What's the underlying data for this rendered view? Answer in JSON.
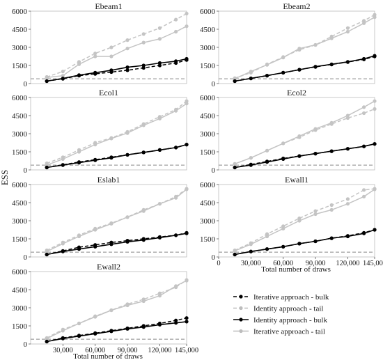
{
  "figure": {
    "ylabel": "ESS",
    "xlabel": "Total number of draws",
    "legend": [
      {
        "label": "Iterative approach - bulk",
        "color": "#000000",
        "dash": true
      },
      {
        "label": "Identity approach - tail",
        "color": "#bdbdbd",
        "dash": true
      },
      {
        "label": "Identity approach - bulk",
        "color": "#000000",
        "dash": false
      },
      {
        "label": "Iterative approach - tail",
        "color": "#bdbdbd",
        "dash": false
      }
    ]
  },
  "chart_data": [
    {
      "type": "line",
      "title": "Ebeam1",
      "x": [
        15000,
        30000,
        45000,
        60000,
        75000,
        90000,
        105000,
        120000,
        135000,
        145000
      ],
      "xlim": [
        0,
        145000
      ],
      "ylim": [
        0,
        6000
      ],
      "yticks": [
        "0",
        "1500",
        "3000",
        "4500",
        "6000"
      ],
      "xticks": [],
      "reference_line": 400,
      "series": [
        {
          "name": "Iterative approach - bulk",
          "values": [
            200,
            400,
            650,
            800,
            950,
            1100,
            1300,
            1500,
            1700,
            1950
          ]
        },
        {
          "name": "Identity approach - tail",
          "values": [
            550,
            1000,
            1800,
            2500,
            3000,
            3600,
            4100,
            4600,
            5300,
            5800
          ]
        },
        {
          "name": "Identity approach - bulk",
          "values": [
            200,
            420,
            700,
            900,
            1100,
            1350,
            1500,
            1700,
            1850,
            2050
          ]
        },
        {
          "name": "Iterative approach - tail",
          "values": [
            500,
            650,
            1600,
            2250,
            2250,
            2900,
            3400,
            3700,
            4300,
            4750
          ]
        }
      ]
    },
    {
      "type": "line",
      "title": "Ebeam2",
      "x": [
        15000,
        30000,
        45000,
        60000,
        75000,
        90000,
        105000,
        120000,
        135000,
        145000
      ],
      "xlim": [
        0,
        145000
      ],
      "ylim": [
        0,
        6000
      ],
      "yticks": [
        "0",
        "1500",
        "3000",
        "4500",
        "6000"
      ],
      "xticks": [],
      "reference_line": 400,
      "series": [
        {
          "name": "Iterative approach - bulk",
          "values": [
            200,
            420,
            650,
            900,
            1150,
            1380,
            1580,
            1780,
            2000,
            2250
          ]
        },
        {
          "name": "Identity approach - tail",
          "values": [
            450,
            900,
            1600,
            2200,
            2800,
            3200,
            3900,
            4600,
            5200,
            5700
          ]
        },
        {
          "name": "Identity approach - bulk",
          "values": [
            200,
            430,
            660,
            900,
            1150,
            1400,
            1600,
            1800,
            2050,
            2300
          ]
        },
        {
          "name": "Iterative approach - tail",
          "values": [
            400,
            1000,
            1550,
            2150,
            2900,
            3200,
            3750,
            4300,
            5000,
            5500
          ]
        }
      ]
    },
    {
      "type": "line",
      "title": "Ecol1",
      "x": [
        15000,
        30000,
        45000,
        60000,
        75000,
        90000,
        105000,
        120000,
        135000,
        145000
      ],
      "xlim": [
        0,
        145000
      ],
      "ylim": [
        0,
        6000
      ],
      "yticks": [
        "0",
        "1500",
        "3000",
        "4500",
        "6000"
      ],
      "xticks": [],
      "reference_line": 400,
      "series": [
        {
          "name": "Iterative approach - bulk",
          "values": [
            200,
            420,
            650,
            850,
            1050,
            1250,
            1450,
            1650,
            1850,
            2100
          ]
        },
        {
          "name": "Identity approach - tail",
          "values": [
            550,
            1050,
            1650,
            2250,
            2650,
            3150,
            3800,
            4400,
            5000,
            5700
          ]
        },
        {
          "name": "Identity approach - bulk",
          "values": [
            200,
            400,
            600,
            800,
            1000,
            1250,
            1450,
            1650,
            1850,
            2100
          ]
        },
        {
          "name": "Iterative approach - tail",
          "values": [
            400,
            900,
            1500,
            2100,
            2600,
            3050,
            3700,
            4250,
            4900,
            5500
          ]
        }
      ]
    },
    {
      "type": "line",
      "title": "Ecol2",
      "x": [
        15000,
        30000,
        45000,
        60000,
        75000,
        90000,
        105000,
        120000,
        135000,
        145000
      ],
      "xlim": [
        0,
        145000
      ],
      "ylim": [
        0,
        6000
      ],
      "yticks": [
        "0",
        "1500",
        "3000",
        "4500",
        "6000"
      ],
      "xticks": [],
      "reference_line": 400,
      "series": [
        {
          "name": "Iterative approach - bulk",
          "values": [
            200,
            450,
            700,
            950,
            1150,
            1350,
            1550,
            1750,
            1950,
            2150
          ]
        },
        {
          "name": "Identity approach - tail",
          "values": [
            500,
            1000,
            1600,
            2200,
            2700,
            3300,
            3800,
            4300,
            4700,
            5050
          ]
        },
        {
          "name": "Identity approach - bulk",
          "values": [
            200,
            400,
            650,
            900,
            1150,
            1350,
            1550,
            1750,
            1950,
            2150
          ]
        },
        {
          "name": "Iterative approach - tail",
          "values": [
            500,
            1000,
            1600,
            2200,
            2800,
            3400,
            3900,
            4500,
            5200,
            5700
          ]
        }
      ]
    },
    {
      "type": "line",
      "title": "Eslab1",
      "x": [
        15000,
        30000,
        45000,
        60000,
        75000,
        90000,
        105000,
        120000,
        135000,
        145000
      ],
      "xlim": [
        0,
        145000
      ],
      "ylim": [
        0,
        6000
      ],
      "yticks": [
        "0",
        "1500",
        "3000",
        "4500",
        "6000"
      ],
      "xticks": [],
      "reference_line": 400,
      "series": [
        {
          "name": "Iterative approach - bulk",
          "values": [
            200,
            500,
            800,
            1000,
            1200,
            1350,
            1500,
            1650,
            1800,
            2000
          ]
        },
        {
          "name": "Identity approach - tail",
          "values": [
            550,
            1200,
            1800,
            2350,
            2800,
            3300,
            3900,
            4400,
            5000,
            5650
          ]
        },
        {
          "name": "Identity approach - bulk",
          "values": [
            200,
            450,
            650,
            850,
            1050,
            1250,
            1400,
            1600,
            1800,
            1950
          ]
        },
        {
          "name": "Iterative approach - tail",
          "values": [
            450,
            1100,
            1700,
            2250,
            2750,
            3300,
            3800,
            4400,
            4900,
            5600
          ]
        }
      ]
    },
    {
      "type": "line",
      "title": "Ewall1",
      "x": [
        15000,
        30000,
        45000,
        60000,
        75000,
        90000,
        105000,
        120000,
        135000,
        145000
      ],
      "xlim": [
        0,
        145000
      ],
      "ylim": [
        0,
        6000
      ],
      "yticks": [
        "0",
        "1500",
        "3000",
        "4500",
        "6000"
      ],
      "xticks": [
        "0",
        "30,000",
        "60,000",
        "90,000",
        "120,000",
        "145,000"
      ],
      "xlabel": "Total number of draws",
      "reference_line": 400,
      "series": [
        {
          "name": "Iterative approach - bulk",
          "values": [
            200,
            450,
            650,
            850,
            1100,
            1300,
            1550,
            1750,
            2000,
            2250
          ]
        },
        {
          "name": "Identity approach - tail",
          "values": [
            550,
            1150,
            1900,
            2550,
            3200,
            3800,
            4300,
            4800,
            5550,
            5650
          ]
        },
        {
          "name": "Identity approach - bulk",
          "values": [
            200,
            450,
            650,
            850,
            1100,
            1300,
            1550,
            1700,
            1950,
            2250
          ]
        },
        {
          "name": "Iterative approach - tail",
          "values": [
            500,
            1050,
            1700,
            2350,
            3000,
            3550,
            3900,
            4400,
            5000,
            5600
          ]
        }
      ]
    },
    {
      "type": "line",
      "title": "Ewall2",
      "x": [
        15000,
        30000,
        45000,
        60000,
        75000,
        90000,
        105000,
        120000,
        135000,
        145000
      ],
      "xlim": [
        0,
        145000
      ],
      "ylim": [
        0,
        6000
      ],
      "yticks": [
        "0",
        "1500",
        "3000",
        "4500",
        "6000"
      ],
      "xticks": [
        "30,000",
        "60,000",
        "90,000",
        "120,000",
        "145,000"
      ],
      "xlabel": "Total number of draws",
      "reference_line": 400,
      "series": [
        {
          "name": "Iterative approach - bulk",
          "values": [
            200,
            500,
            700,
            900,
            1100,
            1300,
            1500,
            1700,
            1950,
            2150
          ]
        },
        {
          "name": "Identity approach - tail",
          "values": [
            500,
            1200,
            1700,
            2300,
            2800,
            3300,
            3700,
            4200,
            4700,
            5300
          ]
        },
        {
          "name": "Identity approach - bulk",
          "values": [
            200,
            450,
            650,
            850,
            1050,
            1250,
            1400,
            1600,
            1750,
            1850
          ]
        },
        {
          "name": "Iterative approach - tail",
          "values": [
            450,
            1100,
            1700,
            2250,
            2800,
            3200,
            3550,
            4000,
            4800,
            5250
          ]
        }
      ]
    }
  ]
}
